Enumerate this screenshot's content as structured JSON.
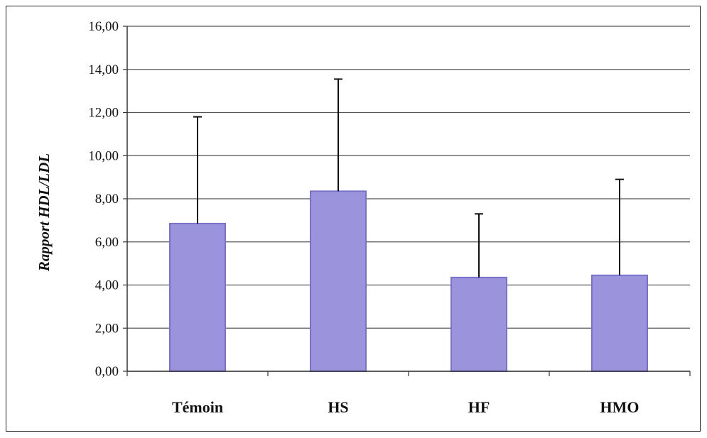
{
  "chart_data": {
    "type": "bar",
    "title": "",
    "xlabel": "",
    "ylabel": "Rapport  HDL/LDL",
    "categories": [
      "Témoin",
      "HS",
      "HF",
      "HMO"
    ],
    "values": [
      6.85,
      8.35,
      4.35,
      4.45
    ],
    "error_upper": [
      11.8,
      13.55,
      7.3,
      8.9
    ],
    "ylim": [
      0,
      16
    ],
    "yticks": [
      0,
      2,
      4,
      6,
      8,
      10,
      12,
      14,
      16
    ],
    "ytick_labels": [
      "0,00",
      "2,00",
      "4,00",
      "6,00",
      "8,00",
      "10,00",
      "12,00",
      "14,00",
      "16,00"
    ],
    "grid": true,
    "legend": "none",
    "colors": {
      "bar": "#9b94dc",
      "bar_edge": "#7a72c9",
      "grid": "#555555",
      "error_bar": "#111111",
      "axis": "#333333"
    }
  }
}
